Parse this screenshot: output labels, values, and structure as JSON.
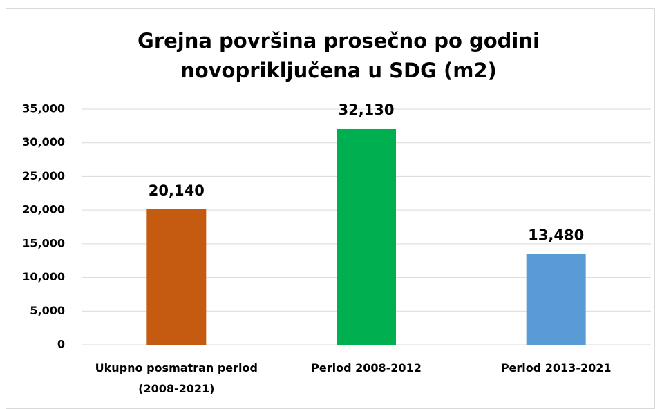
{
  "chart_data": {
    "type": "bar",
    "title": "Grejna površina prosečno po godini novopriključena u SDG (m2)",
    "categories": [
      "Ukupno posmatran period (2008-2021)",
      "Period 2008-2012",
      "Period 2013-2021"
    ],
    "values": [
      20140,
      32130,
      13480
    ],
    "value_labels": [
      "20,140",
      "32,130",
      "13,480"
    ],
    "colors": [
      "#c55a11",
      "#00b050",
      "#5b9bd5"
    ],
    "ylim": [
      0,
      35000
    ],
    "yticks": [
      0,
      {
        "value": 5000,
        "label": "5,000"
      },
      {
        "value": 10000,
        "label": "10,000"
      },
      {
        "value": 15000,
        "label": "15,000"
      },
      {
        "value": 20000,
        "label": "20,000"
      },
      {
        "value": 25000,
        "label": "25,000"
      },
      {
        "value": 30000,
        "label": "30,000"
      },
      {
        "value": 35000,
        "label": "35,000"
      }
    ],
    "grid": true
  }
}
